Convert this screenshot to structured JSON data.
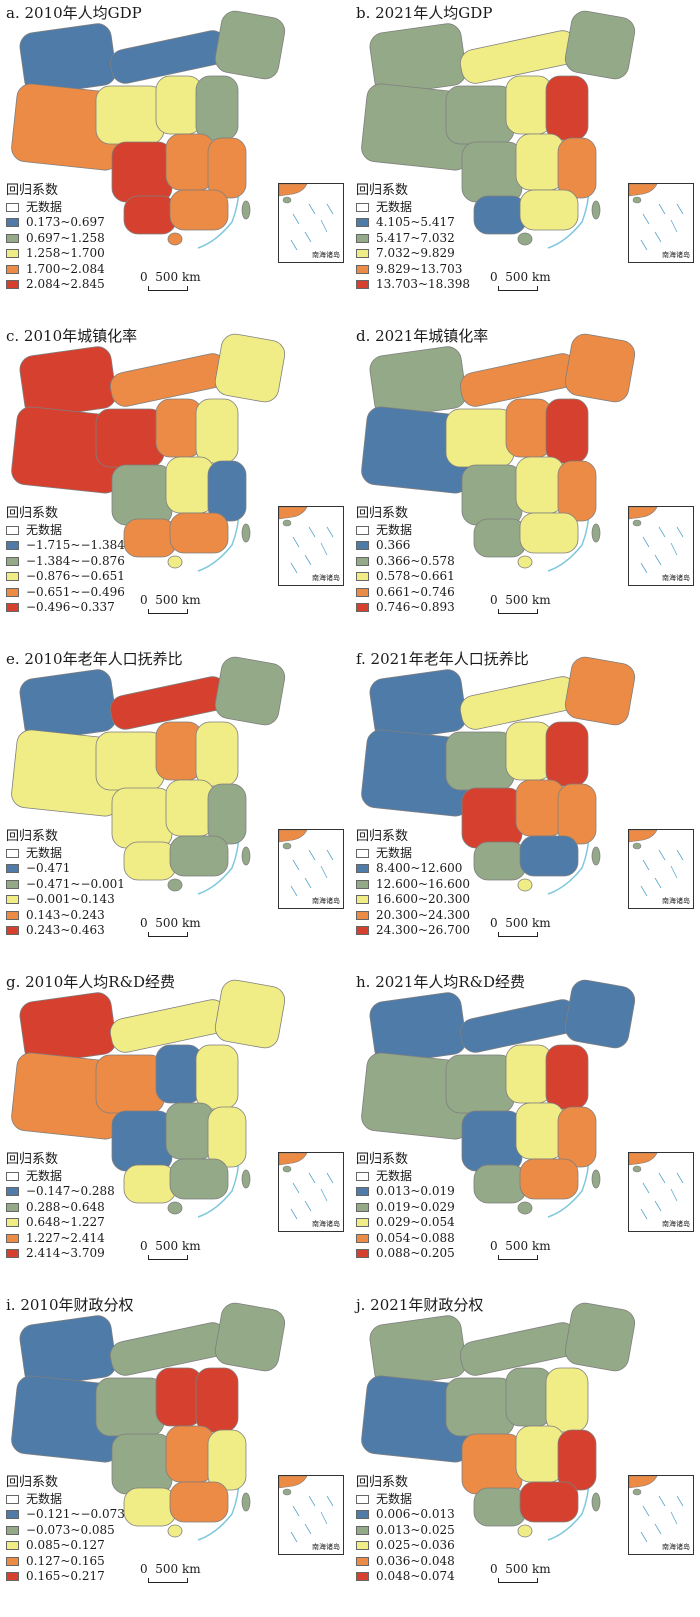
{
  "panels": [
    {
      "title": "a. 2010年人均GDP",
      "legend_title": "回归系数",
      "no_data": "无数据",
      "classes": [
        {
          "label": "0.173~0.697",
          "color": "#4f7ba9"
        },
        {
          "label": "0.697~1.258",
          "color": "#93a987"
        },
        {
          "label": "1.258~1.700",
          "color": "#f0ec86"
        },
        {
          "label": "1.700~2.084",
          "color": "#eb8b45"
        },
        {
          "label": "2.084~2.845",
          "color": "#d6412f"
        }
      ],
      "scale": "0  500 km",
      "inset": "南海诸岛"
    },
    {
      "title": "b. 2021年人均GDP",
      "legend_title": "回归系数",
      "no_data": "无数据",
      "classes": [
        {
          "label": "4.105~5.417",
          "color": "#4f7ba9"
        },
        {
          "label": "5.417~7.032",
          "color": "#93a987"
        },
        {
          "label": "7.032~9.829",
          "color": "#f0ec86"
        },
        {
          "label": "9.829~13.703",
          "color": "#eb8b45"
        },
        {
          "label": "13.703~18.398",
          "color": "#d6412f"
        }
      ],
      "scale": "0  500 km",
      "inset": "南海诸岛"
    },
    {
      "title": "c. 2010年城镇化率",
      "legend_title": "回归系数",
      "no_data": "无数据",
      "classes": [
        {
          "label": "−1.715~−1.384",
          "color": "#4f7ba9"
        },
        {
          "label": "−1.384~−0.876",
          "color": "#93a987"
        },
        {
          "label": "−0.876~−0.651",
          "color": "#f0ec86"
        },
        {
          "label": "−0.651~−0.496",
          "color": "#eb8b45"
        },
        {
          "label": "−0.496~0.337",
          "color": "#d6412f"
        }
      ],
      "scale": "0  500 km",
      "inset": "南海诸岛"
    },
    {
      "title": "d. 2021年城镇化率",
      "legend_title": "回归系数",
      "no_data": "无数据",
      "classes": [
        {
          "label": "0.366",
          "color": "#4f7ba9"
        },
        {
          "label": "0.366~0.578",
          "color": "#93a987"
        },
        {
          "label": "0.578~0.661",
          "color": "#f0ec86"
        },
        {
          "label": "0.661~0.746",
          "color": "#eb8b45"
        },
        {
          "label": "0.746~0.893",
          "color": "#d6412f"
        }
      ],
      "scale": "0  500 km",
      "inset": "南海诸岛"
    },
    {
      "title": "e. 2010年老年人口抚养比",
      "legend_title": "回归系数",
      "no_data": "无数据",
      "classes": [
        {
          "label": "−0.471",
          "color": "#4f7ba9"
        },
        {
          "label": "−0.471~−0.001",
          "color": "#93a987"
        },
        {
          "label": "−0.001~0.143",
          "color": "#f0ec86"
        },
        {
          "label": "0.143~0.243",
          "color": "#eb8b45"
        },
        {
          "label": "0.243~0.463",
          "color": "#d6412f"
        }
      ],
      "scale": "0  500 km",
      "inset": "南海诸岛"
    },
    {
      "title": "f. 2021年老年人口抚养比",
      "legend_title": "回归系数",
      "no_data": "无数据",
      "classes": [
        {
          "label": "8.400~12.600",
          "color": "#4f7ba9"
        },
        {
          "label": "12.600~16.600",
          "color": "#93a987"
        },
        {
          "label": "16.600~20.300",
          "color": "#f0ec86"
        },
        {
          "label": "20.300~24.300",
          "color": "#eb8b45"
        },
        {
          "label": "24.300~26.700",
          "color": "#d6412f"
        }
      ],
      "scale": "0  500 km",
      "inset": "南海诸岛"
    },
    {
      "title": "g. 2010年人均R&D经费",
      "legend_title": "回归系数",
      "no_data": "无数据",
      "classes": [
        {
          "label": "−0.147~0.288",
          "color": "#4f7ba9"
        },
        {
          "label": "0.288~0.648",
          "color": "#93a987"
        },
        {
          "label": "0.648~1.227",
          "color": "#f0ec86"
        },
        {
          "label": "1.227~2.414",
          "color": "#eb8b45"
        },
        {
          "label": "2.414~3.709",
          "color": "#d6412f"
        }
      ],
      "scale": "0  500 km",
      "inset": "南海诸岛"
    },
    {
      "title": "h. 2021年人均R&D经费",
      "legend_title": "回归系数",
      "no_data": "无数据",
      "classes": [
        {
          "label": "0.013~0.019",
          "color": "#4f7ba9"
        },
        {
          "label": "0.019~0.029",
          "color": "#93a987"
        },
        {
          "label": "0.029~0.054",
          "color": "#f0ec86"
        },
        {
          "label": "0.054~0.088",
          "color": "#eb8b45"
        },
        {
          "label": "0.088~0.205",
          "color": "#d6412f"
        }
      ],
      "scale": "0  500 km",
      "inset": "南海诸岛"
    },
    {
      "title": "i. 2010年财政分权",
      "legend_title": "回归系数",
      "no_data": "无数据",
      "classes": [
        {
          "label": "−0.121~−0.073",
          "color": "#4f7ba9"
        },
        {
          "label": "−0.073~0.085",
          "color": "#93a987"
        },
        {
          "label": "0.085~0.127",
          "color": "#f0ec86"
        },
        {
          "label": "0.127~0.165",
          "color": "#eb8b45"
        },
        {
          "label": "0.165~0.217",
          "color": "#d6412f"
        }
      ],
      "scale": "0  500 km",
      "inset": "南海诸岛"
    },
    {
      "title": "j. 2021年财政分权",
      "legend_title": "回归系数",
      "no_data": "无数据",
      "classes": [
        {
          "label": "0.006~0.013",
          "color": "#4f7ba9"
        },
        {
          "label": "0.013~0.025",
          "color": "#93a987"
        },
        {
          "label": "0.025~0.036",
          "color": "#f0ec86"
        },
        {
          "label": "0.036~0.048",
          "color": "#eb8b45"
        },
        {
          "label": "0.048~0.074",
          "color": "#d6412f"
        }
      ],
      "scale": "0  500 km",
      "inset": "南海诸岛"
    }
  ]
}
